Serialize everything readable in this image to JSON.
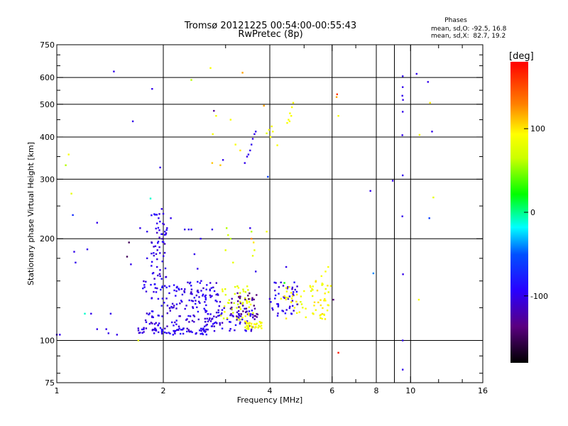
{
  "chart_data": {
    "type": "scatter",
    "title": "Tromsø 20121225 00:54:00-00:55:43",
    "subtitle": "RwPretec (8p)",
    "xlabel": "Frequency [MHz]",
    "ylabel": "Stationary phase Virtual Height [km]",
    "x_scale": "log",
    "y_scale": "log",
    "xlim": [
      1,
      16
    ],
    "ylim": [
      75,
      750
    ],
    "x_ticks": [
      1,
      2,
      4,
      6,
      8,
      10,
      16
    ],
    "x_tick_labels": [
      "1",
      "2",
      "4",
      "6",
      "8",
      "10",
      "16"
    ],
    "y_ticks": [
      75,
      100,
      200,
      300,
      400,
      500,
      600,
      750
    ],
    "y_tick_labels": [
      "75",
      "100",
      "200",
      "300",
      "400",
      "500",
      "600",
      "750"
    ],
    "x_grid": [
      2,
      4,
      6,
      8,
      10
    ],
    "y_grid": [
      100,
      200,
      300,
      400,
      500,
      600
    ],
    "extra_x_minor": [
      9
    ],
    "phases": {
      "heading": "Phases",
      "o_line": "mean, sd,O: -92.5, 16.8",
      "x_line": "mean, sd,X:  82.7, 19.2"
    },
    "colorbar": {
      "label": "[deg]",
      "min": -180,
      "max": 180,
      "ticks": [
        -100,
        0,
        100
      ],
      "tick_labels": [
        "-100",
        "0",
        "100"
      ],
      "colormap": "rainbow (black-violet-blue-cyan-green-yellow-red)"
    },
    "points": [
      [
        1.0,
        104,
        -100
      ],
      [
        1.02,
        104,
        -100
      ],
      [
        1.06,
        330,
        60
      ],
      [
        1.08,
        355,
        90
      ],
      [
        1.1,
        272,
        80
      ],
      [
        1.11,
        235,
        -70
      ],
      [
        1.12,
        183,
        -100
      ],
      [
        1.13,
        170,
        -100
      ],
      [
        1.2,
        120,
        -10
      ],
      [
        1.22,
        186,
        -100
      ],
      [
        1.25,
        120,
        -100
      ],
      [
        1.3,
        108,
        -100
      ],
      [
        1.3,
        223,
        -100
      ],
      [
        1.38,
        108,
        -100
      ],
      [
        1.4,
        105,
        -100
      ],
      [
        1.42,
        120,
        -100
      ],
      [
        1.45,
        625,
        -100
      ],
      [
        1.48,
        104,
        -100
      ],
      [
        1.62,
        168,
        -100
      ],
      [
        1.64,
        445,
        -100
      ],
      [
        1.58,
        177,
        -150
      ],
      [
        1.6,
        195,
        -150
      ],
      [
        1.7,
        100,
        80
      ],
      [
        1.72,
        215,
        -100
      ],
      [
        1.84,
        263,
        -10
      ],
      [
        1.86,
        555,
        -100
      ],
      [
        1.8,
        210,
        -100
      ],
      [
        1.8,
        175,
        -100
      ],
      [
        1.96,
        325,
        -100
      ],
      [
        1.98,
        245,
        -100
      ],
      [
        2.0,
        237,
        -100
      ],
      [
        1.94,
        230,
        -100
      ],
      [
        1.92,
        222,
        -100
      ],
      [
        1.95,
        212,
        -100
      ],
      [
        2.02,
        210,
        -100
      ],
      [
        2.05,
        215,
        -100
      ],
      [
        2.1,
        230,
        -100
      ],
      [
        1.9,
        190,
        -100
      ],
      [
        1.92,
        165,
        -100
      ],
      [
        1.96,
        155,
        -100
      ],
      [
        2.02,
        145,
        -100
      ],
      [
        2.08,
        138,
        -100
      ],
      [
        2.12,
        125,
        -100
      ],
      [
        2.18,
        140,
        -100
      ],
      [
        2.22,
        118,
        -100
      ],
      [
        2.3,
        213,
        -100
      ],
      [
        2.36,
        213,
        -100
      ],
      [
        2.4,
        213,
        -100
      ],
      [
        2.55,
        200,
        -100
      ],
      [
        2.45,
        180,
        -100
      ],
      [
        2.5,
        163,
        -100
      ],
      [
        2.56,
        150,
        -100
      ],
      [
        2.62,
        130,
        -100
      ],
      [
        2.66,
        116,
        -100
      ],
      [
        2.4,
        590,
        60
      ],
      [
        2.72,
        640,
        90
      ],
      [
        2.78,
        478,
        -130
      ],
      [
        2.82,
        462,
        90
      ],
      [
        2.76,
        408,
        90
      ],
      [
        2.75,
        335,
        110
      ],
      [
        2.9,
        330,
        110
      ],
      [
        2.95,
        342,
        -100
      ],
      [
        2.75,
        213,
        -100
      ],
      [
        3.02,
        215,
        60
      ],
      [
        3.05,
        205,
        70
      ],
      [
        3.0,
        185,
        80
      ],
      [
        3.1,
        200,
        60
      ],
      [
        3.15,
        170,
        80
      ],
      [
        3.2,
        380,
        90
      ],
      [
        3.3,
        365,
        100
      ],
      [
        3.1,
        450,
        90
      ],
      [
        3.35,
        620,
        120
      ],
      [
        3.4,
        335,
        -100
      ],
      [
        3.45,
        350,
        -100
      ],
      [
        3.48,
        355,
        -100
      ],
      [
        3.52,
        365,
        -100
      ],
      [
        3.55,
        380,
        -100
      ],
      [
        3.58,
        395,
        -100
      ],
      [
        3.62,
        408,
        -100
      ],
      [
        3.65,
        415,
        -100
      ],
      [
        3.52,
        215,
        -100
      ],
      [
        3.55,
        200,
        130
      ],
      [
        3.6,
        195,
        100
      ],
      [
        3.62,
        185,
        80
      ],
      [
        3.58,
        178,
        80
      ],
      [
        3.65,
        160,
        -100
      ],
      [
        3.55,
        210,
        60
      ],
      [
        3.85,
        495,
        120
      ],
      [
        3.92,
        410,
        80
      ],
      [
        3.98,
        420,
        90
      ],
      [
        4.02,
        400,
        90
      ],
      [
        4.05,
        430,
        90
      ],
      [
        4.08,
        415,
        90
      ],
      [
        4.2,
        378,
        90
      ],
      [
        3.95,
        305,
        -60
      ],
      [
        3.92,
        210,
        90
      ],
      [
        4.48,
        440,
        90
      ],
      [
        4.52,
        450,
        90
      ],
      [
        4.56,
        470,
        90
      ],
      [
        4.62,
        490,
        90
      ],
      [
        4.66,
        505,
        90
      ],
      [
        4.6,
        462,
        90
      ],
      [
        4.55,
        445,
        90
      ],
      [
        4.4,
        148,
        20
      ],
      [
        4.45,
        165,
        -100
      ],
      [
        4.55,
        135,
        -100
      ],
      [
        4.6,
        130,
        90
      ],
      [
        4.7,
        125,
        90
      ],
      [
        4.8,
        128,
        90
      ],
      [
        4.9,
        135,
        90
      ],
      [
        5.0,
        140,
        90
      ],
      [
        5.2,
        145,
        90
      ],
      [
        5.4,
        150,
        90
      ],
      [
        5.6,
        155,
        90
      ],
      [
        5.75,
        160,
        90
      ],
      [
        5.85,
        165,
        90
      ],
      [
        5.95,
        145,
        90
      ],
      [
        6.05,
        132,
        -140
      ],
      [
        6.2,
        535,
        160
      ],
      [
        6.18,
        525,
        120
      ],
      [
        6.25,
        462,
        90
      ],
      [
        6.25,
        92,
        170
      ],
      [
        7.7,
        277,
        -100
      ],
      [
        7.85,
        158,
        -40
      ],
      [
        8.9,
        297,
        -100
      ],
      [
        9.5,
        605,
        -100
      ],
      [
        9.5,
        562,
        -100
      ],
      [
        9.48,
        530,
        -100
      ],
      [
        9.52,
        515,
        -100
      ],
      [
        9.5,
        475,
        -100
      ],
      [
        9.48,
        405,
        -100
      ],
      [
        9.5,
        308,
        -100
      ],
      [
        9.48,
        233,
        -100
      ],
      [
        9.52,
        157,
        -100
      ],
      [
        9.5,
        100,
        -100
      ],
      [
        9.5,
        82,
        -100
      ],
      [
        10.4,
        615,
        -100
      ],
      [
        10.6,
        406,
        90
      ],
      [
        10.55,
        132,
        90
      ],
      [
        11.2,
        582,
        -100
      ],
      [
        11.35,
        505,
        100
      ],
      [
        11.5,
        415,
        -100
      ],
      [
        11.6,
        265,
        80
      ],
      [
        11.3,
        230,
        -60
      ]
    ],
    "dense_regions": [
      {
        "x_range": [
          1.7,
          2.7
        ],
        "y_range": [
          104,
          109
        ],
        "phase": -100,
        "count": 70
      },
      {
        "x_range": [
          1.75,
          2.9
        ],
        "y_range": [
          110,
          150
        ],
        "phase": -100,
        "count": 170
      },
      {
        "x_range": [
          1.85,
          2.05
        ],
        "y_range": [
          150,
          240
        ],
        "phase": -100,
        "count": 50
      },
      {
        "x_range": [
          2.6,
          3.6
        ],
        "y_range": [
          106,
          125
        ],
        "phase": -100,
        "count": 70
      },
      {
        "x_range": [
          2.9,
          3.6
        ],
        "y_range": [
          115,
          145
        ],
        "phase": 80,
        "count": 50
      },
      {
        "x_range": [
          3.1,
          3.7
        ],
        "y_range": [
          115,
          140
        ],
        "phase": -130,
        "count": 40
      },
      {
        "x_range": [
          3.4,
          3.8
        ],
        "y_range": [
          108,
          114
        ],
        "phase": 90,
        "count": 35
      },
      {
        "x_range": [
          4.0,
          4.8
        ],
        "y_range": [
          118,
          150
        ],
        "phase": -100,
        "count": 45
      },
      {
        "x_range": [
          4.3,
          5.9
        ],
        "y_range": [
          115,
          150
        ],
        "phase": 90,
        "count": 60
      }
    ]
  }
}
